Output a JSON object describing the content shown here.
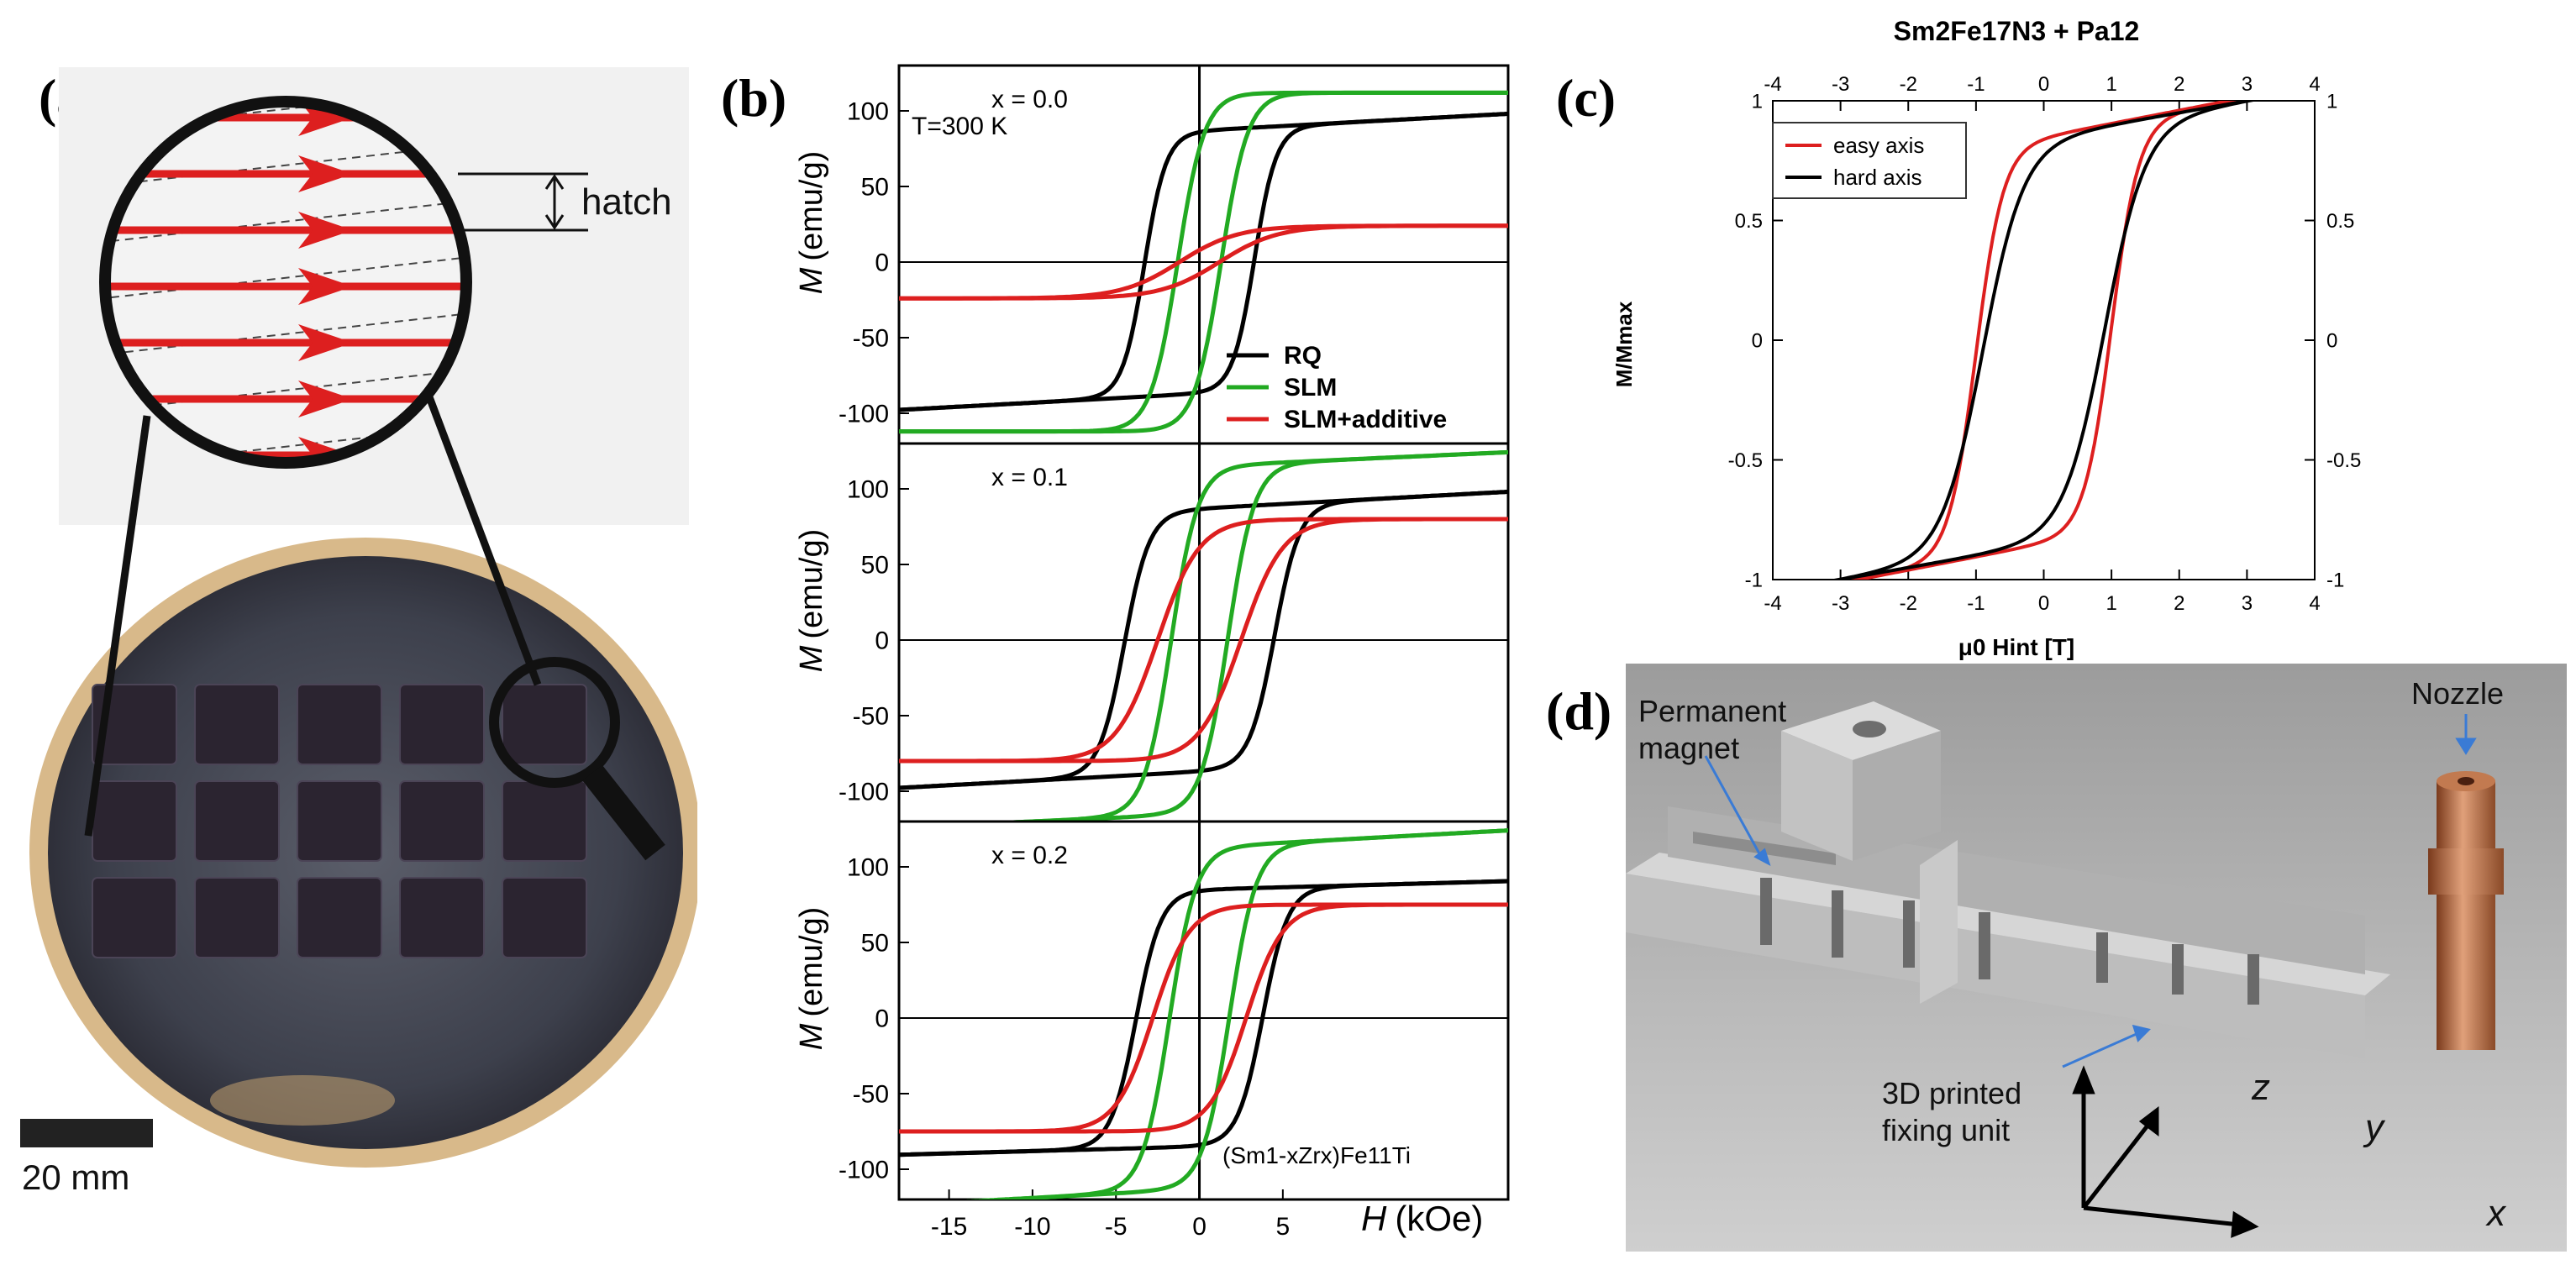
{
  "panel_labels": {
    "a": "(a)",
    "b": "(b)",
    "c": "(c)",
    "d": "(d)"
  },
  "panel_a": {
    "hatch_label": "hatch",
    "scale_bar_label": "20 mm"
  },
  "panel_b": {
    "ylabel_italic": "M",
    "ylabel_unit": "(emu/g)",
    "xlabel_italic": "H",
    "xlabel_unit": "(kOe)",
    "temperature_label": "T=300 K",
    "formula_label": "(Sm1-xZrx)Fe11Ti",
    "legend": [
      {
        "label": "RQ",
        "color": "#000000"
      },
      {
        "label": "SLM",
        "color": "#22aa22"
      },
      {
        "label": "SLM+additive",
        "color": "#dd1f1f"
      }
    ]
  },
  "panel_c": {
    "title": "Sm2Fe17N3 + Pa12",
    "ylabel": "M/Mmax",
    "xlabel": "μ0 Hint [T]",
    "legend": [
      {
        "label": "easy axis",
        "color": "#dd1f1f"
      },
      {
        "label": "hard axis",
        "color": "#000000"
      }
    ]
  },
  "panel_d": {
    "labels": {
      "permanent_magnet_line1": "Permanent",
      "permanent_magnet_line2": "magnet",
      "nozzle": "Nozzle",
      "fixing_unit_line1": "3D printed",
      "fixing_unit_line2": "fixing unit",
      "axis_x": "x",
      "axis_y": "y",
      "axis_z": "z"
    }
  },
  "chart_data": [
    {
      "type": "line",
      "id": "b-top",
      "annotation": "x = 0.0",
      "xlim": [
        -18,
        18.5
      ],
      "ylim": [
        -120,
        130
      ],
      "yticks": [
        -100,
        -50,
        0,
        50,
        100
      ],
      "xticks": [
        -15,
        -10,
        -5,
        0,
        5
      ],
      "grid": false,
      "series": [
        {
          "name": "RQ",
          "color": "#000000",
          "Ms": 87,
          "Mr": 55,
          "Hc": 3.3,
          "w": 1.3,
          "slope": 0.6
        },
        {
          "name": "SLM",
          "color": "#22aa22",
          "Ms": 112,
          "Mr": 60,
          "Hc": 1.3,
          "w": 1.6,
          "slope": 0
        },
        {
          "name": "SLM+additive",
          "color": "#dd1f1f",
          "Ms": 24,
          "Mr": 8,
          "Hc": 1.2,
          "w": 3.5,
          "slope": 0
        }
      ]
    },
    {
      "type": "line",
      "id": "b-mid",
      "annotation": "x = 0.1",
      "xlim": [
        -18,
        18.5
      ],
      "ylim": [
        -120,
        130
      ],
      "yticks": [
        -100,
        -50,
        0,
        50,
        100
      ],
      "xticks": [
        -15,
        -10,
        -5,
        0,
        5
      ],
      "grid": false,
      "series": [
        {
          "name": "RQ",
          "color": "#000000",
          "Ms": 87,
          "Mr": 47,
          "Hc": 4.5,
          "w": 1.5,
          "slope": 0.6
        },
        {
          "name": "SLM",
          "color": "#22aa22",
          "Ms": 115,
          "Mr": 55,
          "Hc": 1.7,
          "w": 1.6,
          "slope": 0.5
        },
        {
          "name": "SLM+additive",
          "color": "#dd1f1f",
          "Ms": 80,
          "Mr": 40,
          "Hc": 2.5,
          "w": 2.5,
          "slope": 0
        }
      ]
    },
    {
      "type": "line",
      "id": "b-bot",
      "annotation": "x = 0.2",
      "xlim": [
        -18,
        18.5
      ],
      "ylim": [
        -120,
        130
      ],
      "yticks": [
        -100,
        -50,
        0,
        50,
        100
      ],
      "xticks": [
        -15,
        -10,
        -5,
        0,
        5
      ],
      "grid": false,
      "series": [
        {
          "name": "RQ",
          "color": "#000000",
          "Ms": 85,
          "Mr": 50,
          "Hc": 3.8,
          "w": 1.5,
          "slope": 0.3
        },
        {
          "name": "SLM",
          "color": "#22aa22",
          "Ms": 113,
          "Mr": 55,
          "Hc": 1.8,
          "w": 1.6,
          "slope": 0.6
        },
        {
          "name": "SLM+additive",
          "color": "#dd1f1f",
          "Ms": 75,
          "Mr": 38,
          "Hc": 2.8,
          "w": 2.2,
          "slope": 0
        }
      ]
    },
    {
      "type": "line",
      "id": "c",
      "title": "Sm2Fe17N3 + Pa12",
      "xlabel": "μ0 Hint [T]",
      "ylabel": "M/Mmax",
      "xlim": [
        -4,
        4
      ],
      "ylim": [
        -1,
        1
      ],
      "xticks": [
        -4,
        -3,
        -2,
        -1,
        0,
        1,
        2,
        3,
        4
      ],
      "yticks": [
        -1,
        -0.5,
        0,
        0.5,
        1
      ],
      "grid": false,
      "legend_position": "top-left",
      "series": [
        {
          "name": "easy axis",
          "color": "#dd1f1f",
          "Ms": 0.85,
          "Mr": 0.62,
          "Hc": 1.0,
          "w": 0.4,
          "slope": 0.055
        },
        {
          "name": "hard axis",
          "color": "#000000",
          "Ms": 0.85,
          "Mr": 0.6,
          "Hc": 0.9,
          "w": 0.6,
          "slope": 0.05
        }
      ]
    }
  ]
}
